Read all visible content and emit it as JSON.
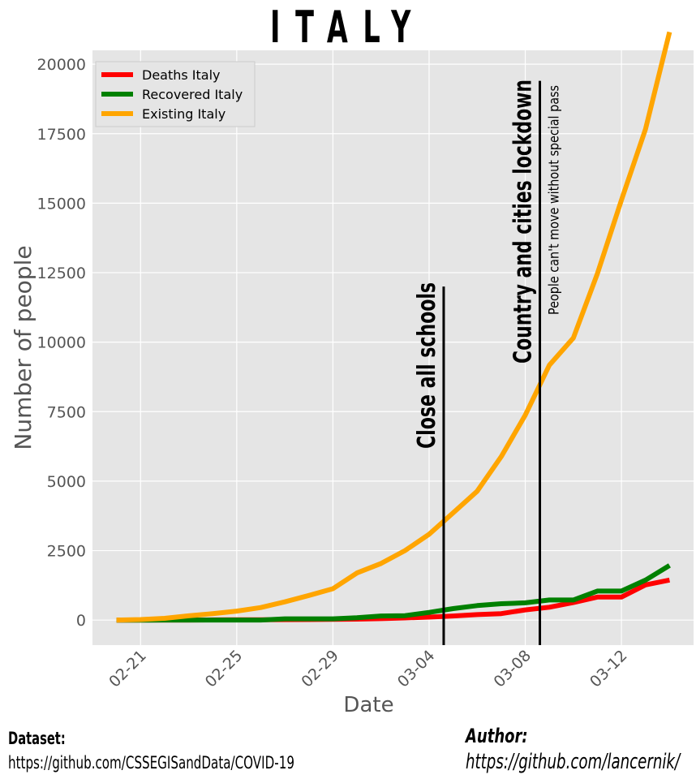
{
  "page": {
    "title": "ITALY",
    "dataset_label": "Dataset:",
    "dataset_url": "https://github.com/CSSEGISandData/COVID-19",
    "author_label": "Author:",
    "author_url": "https://github.com/lancernik/"
  },
  "chart_data": {
    "type": "line",
    "title": "ITALY",
    "xlabel": "Date",
    "ylabel": "Number of people",
    "x": [
      "2020-02-20",
      "2020-02-21",
      "2020-02-22",
      "2020-02-23",
      "2020-02-24",
      "2020-02-25",
      "2020-02-26",
      "2020-02-27",
      "2020-02-28",
      "2020-02-29",
      "2020-03-01",
      "2020-03-02",
      "2020-03-03",
      "2020-03-04",
      "2020-03-05",
      "2020-03-06",
      "2020-03-07",
      "2020-03-08",
      "2020-03-09",
      "2020-03-10",
      "2020-03-11",
      "2020-03-12",
      "2020-03-13",
      "2020-03-14"
    ],
    "x_ticks": [
      "02-21",
      "02-25",
      "02-29",
      "03-04",
      "03-08",
      "03-12"
    ],
    "x_tick_dates": [
      "2020-02-21",
      "2020-02-25",
      "2020-02-29",
      "2020-03-04",
      "2020-03-08",
      "2020-03-12"
    ],
    "y_ticks": [
      0,
      2500,
      5000,
      7500,
      10000,
      12500,
      15000,
      17500,
      20000
    ],
    "ylim": [
      -900,
      20500
    ],
    "xlim": [
      "2020-02-19",
      "2020-03-15"
    ],
    "grid": true,
    "legend_position": "top-left",
    "series": [
      {
        "name": "Deaths Italy",
        "color": "#ff0000",
        "values": [
          0,
          1,
          2,
          3,
          7,
          10,
          12,
          17,
          21,
          29,
          34,
          52,
          79,
          107,
          148,
          197,
          233,
          366,
          463,
          631,
          827,
          827,
          1266,
          1441
        ]
      },
      {
        "name": "Recovered Italy",
        "color": "#008000",
        "values": [
          0,
          0,
          1,
          1,
          1,
          1,
          3,
          45,
          46,
          46,
          83,
          149,
          160,
          276,
          414,
          523,
          589,
          622,
          724,
          724,
          1045,
          1045,
          1439,
          1966
        ]
      },
      {
        "name": "Existing Italy",
        "color": "#ffa500",
        "values": [
          3,
          20,
          62,
          155,
          229,
          322,
          453,
          655,
          888,
          1128,
          1694,
          2036,
          2502,
          3089,
          3858,
          4636,
          5883,
          7375,
          9172,
          10149,
          12462,
          15113,
          17660,
          21157
        ]
      }
    ],
    "annotations": [
      {
        "date": "2020-03-04",
        "label": "Close all schools",
        "ymax": 12000
      },
      {
        "date": "2020-03-08",
        "label": "Country and cities lockdown",
        "sublabel": "People can't move without special pass",
        "ymax": 19400
      }
    ]
  }
}
